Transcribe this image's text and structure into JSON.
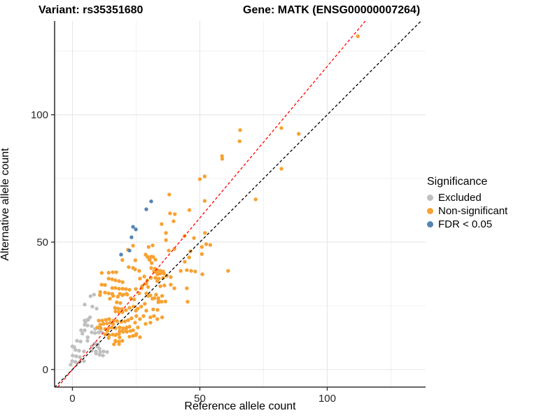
{
  "title": {
    "variant": "Variant: rs35351680",
    "gene": "Gene: MATK (ENSG00000007264)"
  },
  "axes": {
    "x": {
      "label": "Reference allele count"
    },
    "y": {
      "label": "Alternative allele count"
    }
  },
  "legend": {
    "title": "Significance",
    "items": [
      {
        "label": "Excluded",
        "color": "#bfbfbf"
      },
      {
        "label": "Non-significant",
        "color": "#f7a233"
      },
      {
        "label": "FDR < 0.05",
        "color": "#5585b5"
      }
    ]
  },
  "chart_data": {
    "type": "scatter",
    "title": "Variant: rs35351680   Gene: MATK (ENSG00000007264)",
    "xlabel": "Reference allele count",
    "ylabel": "Alternative allele count",
    "x_range": [
      -7.0,
      138.6
    ],
    "y_range": [
      -6.9,
      136.8
    ],
    "x_ticks": [
      0,
      50,
      100
    ],
    "y_ticks": [
      0,
      50,
      100
    ],
    "minor_grid": [
      25,
      75,
      125
    ],
    "grid_color_major": "#e6e6e6",
    "grid_color_minor": "#f1f1f1",
    "axis_line_color": "#333333",
    "legend_position": "right",
    "point_radius": 2.7,
    "lines": [
      {
        "name": "identity",
        "slope": 1.0,
        "intercept": 0,
        "color": "#000000",
        "dash": "4 3"
      },
      {
        "name": "fit",
        "slope": 1.19,
        "intercept": 0,
        "color": "#ff0000",
        "dash": "4 3"
      }
    ],
    "series": [
      {
        "name": "Excluded",
        "color": "#bfbfbf",
        "points": [
          [
            7.1,
            28.8
          ],
          [
            8.5,
            29.4
          ],
          [
            4.8,
            25.5
          ],
          [
            7.8,
            24.7
          ],
          [
            9.5,
            23.9
          ],
          [
            6.9,
            20.5
          ],
          [
            6.0,
            19.6
          ],
          [
            5.1,
            18.7
          ],
          [
            4.8,
            19.2
          ],
          [
            6.2,
            19.5
          ],
          [
            4.8,
            17.6
          ],
          [
            5.9,
            17.3
          ],
          [
            7.6,
            17.0
          ],
          [
            3.4,
            15.4
          ],
          [
            4.8,
            15.4
          ],
          [
            8.9,
            15.9
          ],
          [
            7.6,
            14.6
          ],
          [
            8.9,
            14.3
          ],
          [
            10.3,
            14.6
          ],
          [
            3.9,
            14.1
          ],
          [
            6.0,
            12.7
          ],
          [
            10.4,
            16.2
          ],
          [
            11.3,
            14.8
          ],
          [
            1.8,
            11.3
          ],
          [
            3.2,
            11.0
          ],
          [
            5.9,
            11.3
          ],
          [
            0.0,
            9.1
          ],
          [
            0.7,
            8.8
          ],
          [
            1.2,
            7.7
          ],
          [
            2.6,
            7.4
          ],
          [
            4.5,
            7.1
          ],
          [
            8.7,
            10.2
          ],
          [
            10.0,
            9.9
          ],
          [
            9.7,
            9.1
          ],
          [
            7.6,
            9.1
          ],
          [
            7.6,
            7.4
          ],
          [
            9.2,
            7.1
          ],
          [
            10.6,
            8.2
          ],
          [
            10.9,
            6.9
          ],
          [
            12.2,
            7.1
          ],
          [
            13.6,
            6.9
          ],
          [
            12.0,
            5.5
          ],
          [
            0.1,
            5.5
          ],
          [
            1.5,
            5.2
          ],
          [
            2.9,
            4.9
          ],
          [
            -0.1,
            3.3
          ],
          [
            1.2,
            3.0
          ],
          [
            2.9,
            3.0
          ],
          [
            4.5,
            3.3
          ],
          [
            -0.7,
            1.9
          ],
          [
            9.3,
            6.3
          ],
          [
            10.7,
            5.8
          ]
        ]
      },
      {
        "name": "Non-significant",
        "color": "#f7a233",
        "points": [
          [
            112,
            130.8
          ],
          [
            88.8,
            92.5
          ],
          [
            82,
            94.8
          ],
          [
            82,
            78.8
          ],
          [
            65.8,
            94
          ],
          [
            65.6,
            89.6
          ],
          [
            71.9,
            66.8
          ],
          [
            58.7,
            83.8
          ],
          [
            58.8,
            82.7
          ],
          [
            51.9,
            75.8
          ],
          [
            50,
            74.7
          ],
          [
            51.9,
            66.2
          ],
          [
            38,
            68.7
          ],
          [
            45.9,
            62.6
          ],
          [
            38.3,
            61.3
          ],
          [
            40.2,
            61
          ],
          [
            35,
            57.1
          ],
          [
            39.7,
            58.2
          ],
          [
            36.7,
            53.6
          ],
          [
            36.7,
            50.8
          ],
          [
            44,
            52.4
          ],
          [
            47.7,
            51.6
          ],
          [
            52,
            53.6
          ],
          [
            52.5,
            49.2
          ],
          [
            54.1,
            48.9
          ],
          [
            50.8,
            48.1
          ],
          [
            46.3,
            46.4
          ],
          [
            50.8,
            45.3
          ],
          [
            45.8,
            44
          ],
          [
            44.1,
            42.3
          ],
          [
            61.1,
            38.7
          ],
          [
            51,
            37.4
          ],
          [
            45.2,
            26.6
          ],
          [
            29.9,
            48.1
          ],
          [
            31.5,
            48.7
          ],
          [
            23.8,
            48.6
          ],
          [
            21.8,
            47
          ],
          [
            37.8,
            46.7
          ],
          [
            40,
            47.3
          ],
          [
            28.7,
            45.1
          ],
          [
            30.6,
            44
          ],
          [
            31.7,
            44.2
          ],
          [
            32.6,
            43.1
          ],
          [
            24.7,
            42.9
          ],
          [
            19.6,
            43
          ],
          [
            30.1,
            43.4
          ],
          [
            29.4,
            44.3
          ],
          [
            30.9,
            44.3
          ],
          [
            30.3,
            43
          ],
          [
            31.1,
            41.8
          ],
          [
            23.8,
            39.9
          ],
          [
            22.1,
            40.2
          ],
          [
            24.6,
            39.3
          ],
          [
            26.2,
            38.7
          ],
          [
            30.9,
            39.8
          ],
          [
            32,
            38.5
          ],
          [
            33.4,
            39
          ],
          [
            34.5,
            38.7
          ],
          [
            35.6,
            38.5
          ],
          [
            42.5,
            38.7
          ],
          [
            44.9,
            39
          ],
          [
            46.6,
            38.7
          ],
          [
            48.2,
            38.5
          ],
          [
            32.4,
            39.6
          ],
          [
            33.1,
            38.1
          ],
          [
            34.5,
            37.7
          ],
          [
            35.9,
            37.7
          ],
          [
            33.4,
            37.4
          ],
          [
            32.6,
            36
          ],
          [
            33.9,
            35.7
          ],
          [
            35.6,
            36
          ],
          [
            37,
            36.8
          ],
          [
            38.6,
            36.3
          ],
          [
            26.5,
            35.7
          ],
          [
            28.2,
            36.5
          ],
          [
            30.8,
            36
          ],
          [
            29.4,
            35
          ],
          [
            11.5,
            37.9
          ],
          [
            14.2,
            38
          ],
          [
            15.8,
            38.2
          ],
          [
            17.2,
            38.2
          ],
          [
            14.2,
            35.7
          ],
          [
            15.6,
            35.4
          ],
          [
            16.9,
            35
          ],
          [
            18.3,
            34.7
          ],
          [
            19.7,
            34.3
          ],
          [
            12.8,
            33.2
          ],
          [
            11.5,
            33.3
          ],
          [
            15.6,
            32
          ],
          [
            16.9,
            32
          ],
          [
            18.3,
            31.7
          ],
          [
            19.7,
            31.7
          ],
          [
            21,
            31.6
          ],
          [
            22.4,
            31.3
          ],
          [
            10.9,
            30.4
          ],
          [
            12.8,
            30.2
          ],
          [
            14.2,
            29.9
          ],
          [
            15.6,
            29.7
          ],
          [
            18.6,
            29.7
          ],
          [
            19.9,
            29.4
          ],
          [
            21.2,
            29.7
          ],
          [
            26.2,
            29.9
          ],
          [
            29,
            29.9
          ],
          [
            30.6,
            29.1
          ],
          [
            28.4,
            33.6
          ],
          [
            29.7,
            32.4
          ],
          [
            27.2,
            31.9
          ],
          [
            33.3,
            34.7
          ],
          [
            38.6,
            33.3
          ],
          [
            40,
            31.9
          ],
          [
            36.1,
            33
          ],
          [
            34.5,
            32.7
          ],
          [
            29,
            33.8
          ],
          [
            27.3,
            32.7
          ],
          [
            24.9,
            31.6
          ],
          [
            44.9,
            31.9
          ],
          [
            10.8,
            29.2
          ],
          [
            29.7,
            28.9
          ],
          [
            32.8,
            29.4
          ],
          [
            16,
            28.9
          ],
          [
            17.8,
            28.6
          ],
          [
            19.6,
            29.2
          ],
          [
            21.5,
            29.4
          ],
          [
            32.2,
            28
          ],
          [
            33.7,
            28
          ],
          [
            35,
            26.6
          ],
          [
            33.7,
            26.4
          ],
          [
            22.9,
            28
          ],
          [
            24.2,
            27.5
          ],
          [
            14.7,
            27.8
          ],
          [
            31.4,
            27.8
          ],
          [
            35.2,
            28.9
          ],
          [
            33.8,
            27
          ],
          [
            36.5,
            26.7
          ],
          [
            17.4,
            26.4
          ],
          [
            18.8,
            26.1
          ],
          [
            28.4,
            25.8
          ],
          [
            24,
            24.7
          ],
          [
            25.6,
            23.9
          ],
          [
            27,
            24.7
          ],
          [
            16.7,
            24.2
          ],
          [
            18,
            23.9
          ],
          [
            19.4,
            23.7
          ],
          [
            22.4,
            24.2
          ],
          [
            16.9,
            22.8
          ],
          [
            18.3,
            22.5
          ],
          [
            19.6,
            22.5
          ],
          [
            21,
            23.3
          ],
          [
            31.7,
            23.6
          ],
          [
            33.4,
            23.4
          ],
          [
            29,
            23.1
          ],
          [
            24.9,
            23.1
          ],
          [
            23.2,
            20.1
          ],
          [
            21.9,
            19.4
          ],
          [
            20.6,
            18.9
          ],
          [
            19.2,
            18.7
          ],
          [
            25.1,
            21
          ],
          [
            26.5,
            19.8
          ],
          [
            27.9,
            21
          ],
          [
            30.6,
            20.5
          ],
          [
            32,
            21
          ],
          [
            33.3,
            19.8
          ],
          [
            35.2,
            20.5
          ],
          [
            28.7,
            17.9
          ],
          [
            25.7,
            16.5
          ],
          [
            24.6,
            18.4
          ],
          [
            30.6,
            18.4
          ],
          [
            22.4,
            16.8
          ],
          [
            21,
            15.9
          ],
          [
            23.8,
            15.4
          ],
          [
            19.6,
            15.1
          ],
          [
            16,
            17.8
          ],
          [
            10.3,
            19.2
          ],
          [
            11.7,
            19.2
          ],
          [
            13.1,
            19.5
          ],
          [
            14.4,
            19.8
          ],
          [
            16.1,
            19.2
          ],
          [
            17.5,
            19
          ],
          [
            15,
            18.4
          ],
          [
            13.6,
            18.1
          ],
          [
            12.2,
            17.9
          ],
          [
            10.9,
            17.6
          ],
          [
            9.8,
            16.5
          ],
          [
            11.1,
            16.2
          ],
          [
            12.8,
            15.9
          ],
          [
            14.2,
            16.2
          ],
          [
            15.5,
            16.5
          ],
          [
            16.9,
            16.2
          ],
          [
            18.5,
            16.5
          ],
          [
            19.9,
            16.2
          ],
          [
            21.3,
            16.5
          ],
          [
            18.3,
            14
          ],
          [
            16.9,
            13.5
          ],
          [
            25.1,
            14
          ],
          [
            26.5,
            12.7
          ],
          [
            18.5,
            15.1
          ],
          [
            19.9,
            14.8
          ],
          [
            21.3,
            14.8
          ],
          [
            22.7,
            15.1
          ],
          [
            17.2,
            13.7
          ],
          [
            15.8,
            13.7
          ],
          [
            14.4,
            13.5
          ],
          [
            13.7,
            15.1
          ],
          [
            12.9,
            13.8
          ],
          [
            14.2,
            12.4
          ],
          [
            18.5,
            12.6
          ],
          [
            16.9,
            11.3
          ],
          [
            18.3,
            11
          ],
          [
            19.6,
            11.3
          ],
          [
            16.3,
            9.9
          ],
          [
            22.4,
            12.9
          ],
          [
            23.8,
            13.2
          ],
          [
            24.9,
            13.5
          ],
          [
            16.9,
            11
          ],
          [
            18.3,
            10
          ]
        ]
      },
      {
        "name": "FDR < 0.05",
        "color": "#5585b5",
        "points": [
          [
            30.9,
            66.0
          ],
          [
            29.0,
            62.9
          ],
          [
            24.9,
            55.0
          ],
          [
            23.8,
            56.0
          ],
          [
            23.2,
            51.9
          ],
          [
            22.4,
            46.7
          ],
          [
            19.1,
            45.1
          ]
        ]
      }
    ]
  }
}
